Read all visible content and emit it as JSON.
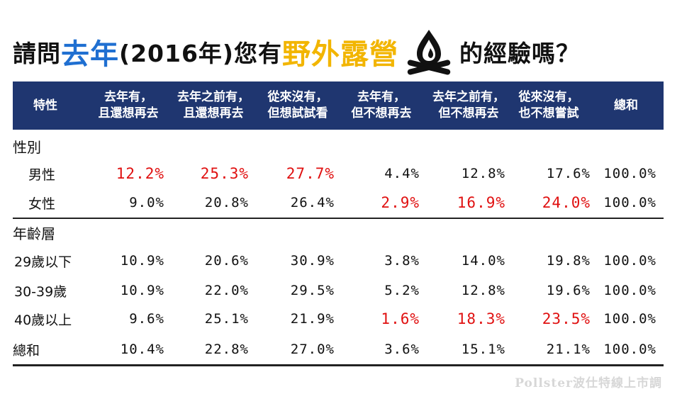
{
  "title": {
    "prefix": "請問",
    "highlight1": "去年",
    "middle": "(2016年)您有",
    "highlight2": "野外露營",
    "suffix": "的經驗嗎？",
    "icon": "campfire-icon",
    "colors": {
      "blue": "#1f6fd1",
      "gold": "#f2b500"
    }
  },
  "header_color": "#1f3670",
  "highlight_color": "#e01010",
  "source": "Pollster波仕特線上市調",
  "chart_data": {
    "type": "table",
    "columns": [
      "特性",
      "去年有，\n且還想再去",
      "去年之前有，\n且還想再去",
      "從來沒有，\n但想試試看",
      "去年有，\n但不想再去",
      "去年之前有，\n但不想再去",
      "從來沒有，\n也不想嘗試",
      "總和"
    ],
    "rows": [
      {
        "kind": "section",
        "label": "性別"
      },
      {
        "kind": "data",
        "label": "男性",
        "values": [
          "12.2%",
          "25.3%",
          "27.7%",
          "4.4%",
          "12.8%",
          "17.6%",
          "100.0%"
        ],
        "highlight": [
          0,
          1,
          2
        ]
      },
      {
        "kind": "data",
        "label": "女性",
        "values": [
          "9.0%",
          "20.8%",
          "26.4%",
          "2.9%",
          "16.9%",
          "24.0%",
          "100.0%"
        ],
        "highlight": [
          3,
          4,
          5
        ]
      },
      {
        "kind": "section",
        "label": "年齡層"
      },
      {
        "kind": "data",
        "label": "29歲以下",
        "values": [
          "10.9%",
          "20.6%",
          "30.9%",
          "3.8%",
          "14.0%",
          "19.8%",
          "100.0%"
        ],
        "highlight": []
      },
      {
        "kind": "data",
        "label": "30-39歲",
        "values": [
          "10.9%",
          "22.0%",
          "29.5%",
          "5.2%",
          "12.8%",
          "19.6%",
          "100.0%"
        ],
        "highlight": []
      },
      {
        "kind": "data",
        "label": "40歲以上",
        "values": [
          "9.6%",
          "25.1%",
          "21.9%",
          "1.6%",
          "18.3%",
          "23.5%",
          "100.0%"
        ],
        "highlight": [
          3,
          4,
          5
        ]
      },
      {
        "kind": "total",
        "label": "總和",
        "values": [
          "10.4%",
          "22.8%",
          "27.0%",
          "3.6%",
          "15.1%",
          "21.1%",
          "100.0%"
        ],
        "highlight": []
      }
    ]
  }
}
